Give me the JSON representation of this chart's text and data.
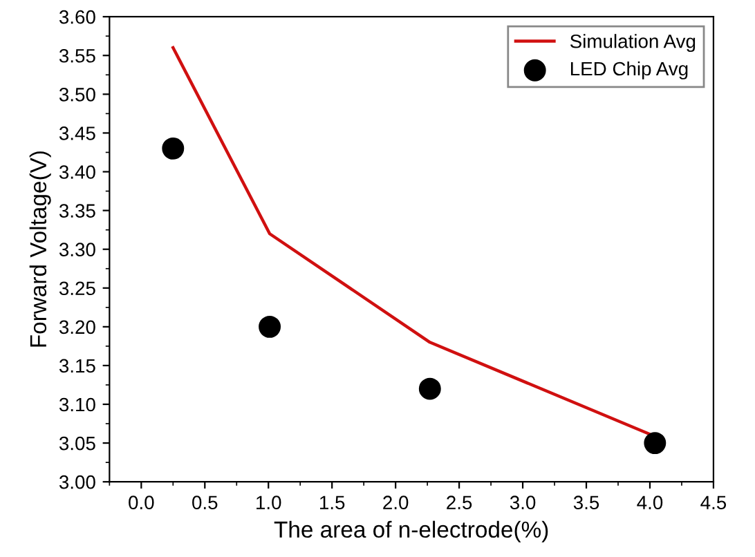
{
  "chart_data": {
    "type": "line",
    "xlabel": "The area of n-electrode(%)",
    "ylabel": "Forward Voltage(V)",
    "series": [
      {
        "name": "Simulation Avg",
        "color": "#d01010",
        "marker": "none",
        "x": [
          0.25,
          1.01,
          2.27,
          4.02
        ],
        "values": [
          3.56,
          3.32,
          3.18,
          3.06
        ]
      },
      {
        "name": "LED Chip Avg",
        "type": "scatter",
        "color": "#000000",
        "marker": "circle",
        "x": [
          0.25,
          1.01,
          2.27,
          4.04
        ],
        "values": [
          3.43,
          3.2,
          3.12,
          3.05
        ]
      }
    ],
    "xlim": [
      -0.25,
      4.5
    ],
    "xticks": [
      {
        "value": 0,
        "label": "0.0"
      },
      0.5,
      {
        "value": 1,
        "label": "1.0"
      },
      1.5,
      {
        "value": 2,
        "label": "2.0"
      },
      2.5,
      {
        "value": 3,
        "label": "3.0"
      },
      3.5,
      {
        "value": 4,
        "label": "4.0"
      },
      4.5
    ],
    "ylim": [
      3.0,
      3.6
    ],
    "yticks": [
      {
        "value": 3.0,
        "label": "3.00"
      },
      3.05,
      {
        "value": 3.1,
        "label": "3.10"
      },
      3.15,
      {
        "value": 3.2,
        "label": "3.20"
      },
      3.25,
      {
        "value": 3.3,
        "label": "3.30"
      },
      3.35,
      {
        "value": 3.4,
        "label": "3.40"
      },
      3.45,
      {
        "value": 3.5,
        "label": "3.50"
      },
      3.55,
      {
        "value": 3.6,
        "label": "3.60"
      }
    ],
    "grid": false,
    "legend": "top right"
  }
}
